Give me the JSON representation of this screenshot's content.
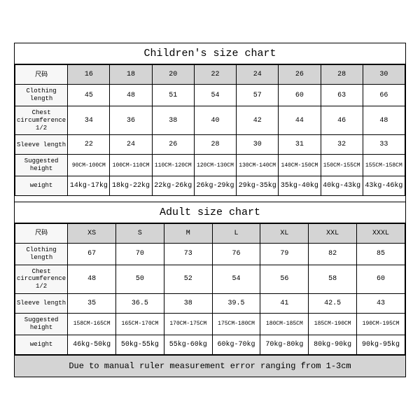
{
  "children": {
    "title": "Children's size chart",
    "header_label": "尺码",
    "sizes": [
      "16",
      "18",
      "20",
      "22",
      "24",
      "26",
      "28",
      "30"
    ],
    "rows": [
      {
        "label": "Clothing length",
        "vals": [
          "45",
          "48",
          "51",
          "54",
          "57",
          "60",
          "63",
          "66"
        ]
      },
      {
        "label": "Chest circumference 1/2",
        "vals": [
          "34",
          "36",
          "38",
          "40",
          "42",
          "44",
          "46",
          "48"
        ]
      },
      {
        "label": "Sleeve length",
        "vals": [
          "22",
          "24",
          "26",
          "28",
          "30",
          "31",
          "32",
          "33"
        ]
      },
      {
        "label": "Suggested height",
        "vals": [
          "90CM-100CM",
          "100CM-110CM",
          "110CM-120CM",
          "120CM-130CM",
          "130CM-140CM",
          "140CM-150CM",
          "150CM-155CM",
          "155CM-158CM"
        ],
        "small": true
      },
      {
        "label": "weight",
        "vals": [
          "14kg-17kg",
          "18kg-22kg",
          "22kg-26kg",
          "26kg-29kg",
          "29kg-35kg",
          "35kg-40kg",
          "40kg-43kg",
          "43kg-46kg"
        ]
      }
    ]
  },
  "adult": {
    "title": "Adult size chart",
    "header_label": "尺码",
    "sizes": [
      "XS",
      "S",
      "M",
      "L",
      "XL",
      "XXL",
      "XXXL"
    ],
    "rows": [
      {
        "label": "Clothing length",
        "vals": [
          "67",
          "70",
          "73",
          "76",
          "79",
          "82",
          "85"
        ]
      },
      {
        "label": "Chest circumference 1/2",
        "vals": [
          "48",
          "50",
          "52",
          "54",
          "56",
          "58",
          "60"
        ]
      },
      {
        "label": "Sleeve length",
        "vals": [
          "35",
          "36.5",
          "38",
          "39.5",
          "41",
          "42.5",
          "43"
        ]
      },
      {
        "label": "Suggested height",
        "vals": [
          "158CM-165CM",
          "165CM-170CM",
          "170CM-175CM",
          "175CM-180CM",
          "180CM-185CM",
          "185CM-190CM",
          "190CM-195CM"
        ],
        "small": true
      },
      {
        "label": "weight",
        "vals": [
          "46kg-50kg",
          "50kg-55kg",
          "55kg-60kg",
          "60kg-70kg",
          "70kg-80kg",
          "80kg-90kg",
          "90kg-95kg"
        ]
      }
    ]
  },
  "footer": "Due to manual ruler measurement error ranging from 1-3cm",
  "colors": {
    "header_bg": "#d4d4d4",
    "rowheader_bg": "#f7f7f7",
    "border": "#000000",
    "background": "#ffffff"
  }
}
